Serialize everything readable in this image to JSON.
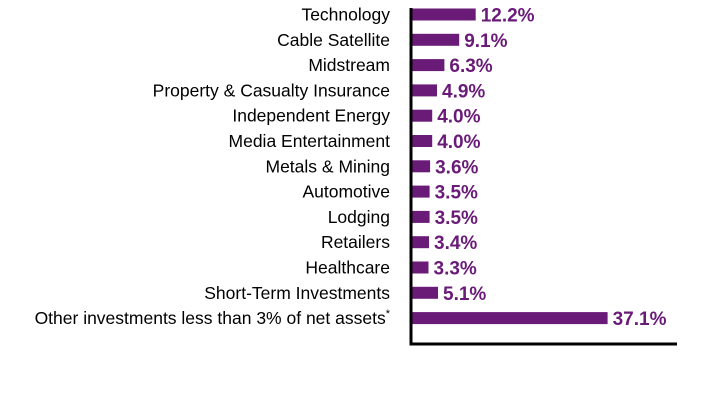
{
  "chart_data": {
    "type": "bar",
    "orientation": "horizontal",
    "categories": [
      "Technology",
      "Cable Satellite",
      "Midstream",
      "Property & Casualty Insurance",
      "Independent Energy",
      "Media Entertainment",
      "Metals & Mining",
      "Automotive",
      "Lodging",
      "Retailers",
      "Healthcare",
      "Short-Term Investments",
      "Other investments less than 3% of net assets"
    ],
    "footnote_marks": [
      "",
      "",
      "",
      "",
      "",
      "",
      "",
      "",
      "",
      "",
      "",
      "",
      "*"
    ],
    "values": [
      12.2,
      9.1,
      6.3,
      4.9,
      4.0,
      4.0,
      3.6,
      3.5,
      3.5,
      3.4,
      3.3,
      5.1,
      37.1
    ],
    "value_labels": [
      "12.2%",
      "9.1%",
      "6.3%",
      "4.9%",
      "4.0%",
      "4.0%",
      "3.6%",
      "3.5%",
      "3.5%",
      "3.4%",
      "3.3%",
      "5.1%",
      "37.1%"
    ],
    "title": "",
    "xlabel": "",
    "ylabel": "",
    "xlim": [
      0,
      50
    ],
    "grid": false,
    "legend": "none",
    "bar_color": "#6a1b78",
    "label_color": "#6a1b78",
    "axis_color": "#000000"
  }
}
